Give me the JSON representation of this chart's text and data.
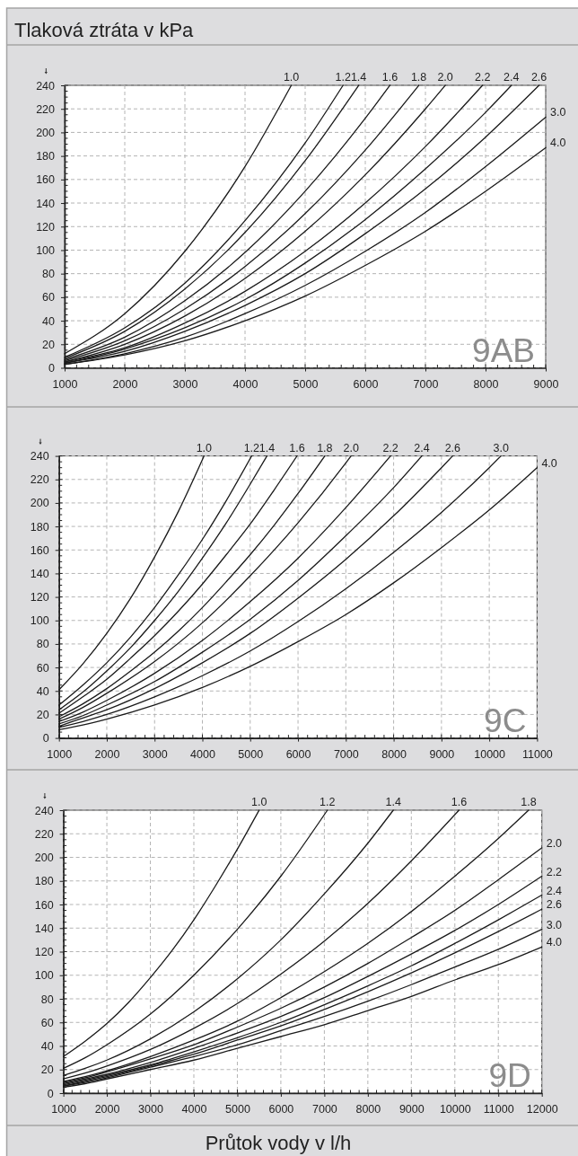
{
  "chart_data": [
    {
      "type": "line",
      "title": "9AB",
      "ylabel": "Tlaková ztráta v kPa",
      "grid": true,
      "xlim": [
        1000,
        9000
      ],
      "ylim": [
        0,
        240
      ],
      "xticks": [
        1000,
        {
          "value": 1200,
          "label": null
        },
        {
          "value": 1400,
          "label": null
        },
        {
          "value": 1600,
          "label": null
        },
        {
          "value": 1800,
          "label": null
        },
        2000,
        {
          "value": 2200,
          "label": null
        },
        {
          "value": 2400,
          "label": null
        },
        {
          "value": 2600,
          "label": null
        },
        {
          "value": 2800,
          "label": null
        },
        3000,
        {
          "value": 3200,
          "label": null
        },
        {
          "value": 3400,
          "label": null
        },
        {
          "value": 3600,
          "label": null
        },
        {
          "value": 3800,
          "label": null
        },
        4000,
        {
          "value": 4200,
          "label": null
        },
        {
          "value": 4400,
          "label": null
        },
        {
          "value": 4600,
          "label": null
        },
        {
          "value": 4800,
          "label": null
        },
        5000,
        {
          "value": 5200,
          "label": null
        },
        {
          "value": 5400,
          "label": null
        },
        {
          "value": 5600,
          "label": null
        },
        {
          "value": 5800,
          "label": null
        },
        6000,
        {
          "value": 6200,
          "label": null
        },
        {
          "value": 6400,
          "label": null
        },
        {
          "value": 6600,
          "label": null
        },
        {
          "value": 6800,
          "label": null
        },
        7000,
        {
          "value": 7200,
          "label": null
        },
        {
          "value": 7400,
          "label": null
        },
        {
          "value": 7600,
          "label": null
        },
        {
          "value": 7800,
          "label": null
        },
        8000,
        {
          "value": 8200,
          "label": null
        },
        {
          "value": 8400,
          "label": null
        },
        {
          "value": 8600,
          "label": null
        },
        {
          "value": 8800,
          "label": null
        },
        9000
      ],
      "yticks": [
        0,
        {
          "value": 5,
          "label": null
        },
        {
          "value": 10,
          "label": null
        },
        {
          "value": 15,
          "label": null
        },
        20,
        {
          "value": 25,
          "label": null
        },
        {
          "value": 30,
          "label": null
        },
        {
          "value": 35,
          "label": null
        },
        40,
        {
          "value": 45,
          "label": null
        },
        {
          "value": 50,
          "label": null
        },
        {
          "value": 55,
          "label": null
        },
        60,
        {
          "value": 65,
          "label": null
        },
        {
          "value": 70,
          "label": null
        },
        {
          "value": 75,
          "label": null
        },
        80,
        {
          "value": 85,
          "label": null
        },
        {
          "value": 90,
          "label": null
        },
        {
          "value": 95,
          "label": null
        },
        100,
        {
          "value": 105,
          "label": null
        },
        {
          "value": 110,
          "label": null
        },
        {
          "value": 115,
          "label": null
        },
        120,
        {
          "value": 125,
          "label": null
        },
        {
          "value": 130,
          "label": null
        },
        {
          "value": 135,
          "label": null
        },
        140,
        {
          "value": 145,
          "label": null
        },
        {
          "value": 150,
          "label": null
        },
        {
          "value": 155,
          "label": null
        },
        160,
        {
          "value": 165,
          "label": null
        },
        {
          "value": 170,
          "label": null
        },
        {
          "value": 175,
          "label": null
        },
        180,
        {
          "value": 185,
          "label": null
        },
        {
          "value": 190,
          "label": null
        },
        {
          "value": 195,
          "label": null
        },
        200,
        {
          "value": 205,
          "label": null
        },
        {
          "value": 210,
          "label": null
        },
        {
          "value": 215,
          "label": null
        },
        220,
        {
          "value": 225,
          "label": null
        },
        {
          "value": 230,
          "label": null
        },
        {
          "value": 235,
          "label": null
        },
        240
      ],
      "series": [
        {
          "name": "1.0",
          "color": "#1a1a1a",
          "x": [
            1000,
            2000,
            3000,
            4000,
            4770
          ],
          "values": [
            12,
            46,
            99,
            171,
            240
          ]
        },
        {
          "name": "1.2",
          "color": "#1a1a1a",
          "x": [
            1000,
            2000,
            3000,
            4000,
            5000,
            5630
          ],
          "values": [
            9,
            34,
            72,
            125,
            191,
            240
          ]
        },
        {
          "name": "1.4",
          "color": "#1a1a1a",
          "x": [
            1000,
            2000,
            3000,
            4000,
            5000,
            5890
          ],
          "values": [
            8,
            31,
            67,
            115,
            176,
            240
          ]
        },
        {
          "name": "1.6",
          "color": "#1a1a1a",
          "x": [
            1000,
            2000,
            3000,
            4000,
            5000,
            6000,
            6410
          ],
          "values": [
            7,
            26,
            57,
            98,
            150,
            212,
            240
          ]
        },
        {
          "name": "1.8",
          "color": "#1a1a1a",
          "x": [
            1000,
            2000,
            3000,
            4000,
            5000,
            6000,
            6890
          ],
          "values": [
            6,
            23,
            50,
            86,
            131,
            185,
            240
          ]
        },
        {
          "name": "2.0",
          "color": "#1a1a1a",
          "x": [
            1000,
            2000,
            3000,
            4000,
            5000,
            6000,
            7000,
            7330
          ],
          "values": [
            5,
            20,
            44,
            76,
            116,
            164,
            220,
            240
          ]
        },
        {
          "name": "2.2",
          "color": "#1a1a1a",
          "x": [
            1000,
            2000,
            3000,
            4000,
            5000,
            6000,
            7000,
            7950
          ],
          "values": [
            5,
            17,
            38,
            65,
            99,
            140,
            188,
            240
          ]
        },
        {
          "name": "2.4",
          "color": "#1a1a1a",
          "x": [
            1000,
            2000,
            3000,
            4000,
            5000,
            6000,
            7000,
            8000,
            8430
          ],
          "values": [
            4,
            16,
            34,
            58,
            89,
            126,
            169,
            217,
            240
          ]
        },
        {
          "name": "2.6",
          "color": "#1a1a1a",
          "x": [
            1000,
            2000,
            3000,
            4000,
            5000,
            6000,
            7000,
            8000,
            8890
          ],
          "values": [
            4,
            14,
            31,
            53,
            80,
            114,
            152,
            196,
            240
          ]
        },
        {
          "name": "3.0",
          "color": "#1a1a1a",
          "x": [
            1000,
            2000,
            3000,
            4000,
            5000,
            6000,
            7000,
            8000,
            9000
          ],
          "values": [
            3,
            12,
            26,
            46,
            70,
            99,
            132,
            171,
            213
          ]
        },
        {
          "name": "4.0",
          "color": "#1a1a1a",
          "x": [
            1000,
            2000,
            3000,
            4000,
            5000,
            6000,
            7000,
            8000,
            9000
          ],
          "values": [
            3,
            11,
            23,
            40,
            61,
            87,
            116,
            150,
            187
          ]
        }
      ]
    },
    {
      "type": "line",
      "title": "9C",
      "grid": true,
      "xlim": [
        1000,
        11000
      ],
      "ylim": [
        0,
        240
      ],
      "xticks": [
        1000,
        {
          "value": 1200,
          "label": null
        },
        {
          "value": 1400,
          "label": null
        },
        {
          "value": 1600,
          "label": null
        },
        {
          "value": 1800,
          "label": null
        },
        2000,
        {
          "value": 2200,
          "label": null
        },
        {
          "value": 2400,
          "label": null
        },
        {
          "value": 2600,
          "label": null
        },
        {
          "value": 2800,
          "label": null
        },
        3000,
        {
          "value": 3200,
          "label": null
        },
        {
          "value": 3400,
          "label": null
        },
        {
          "value": 3600,
          "label": null
        },
        {
          "value": 3800,
          "label": null
        },
        4000,
        {
          "value": 4200,
          "label": null
        },
        {
          "value": 4400,
          "label": null
        },
        {
          "value": 4600,
          "label": null
        },
        {
          "value": 4800,
          "label": null
        },
        5000,
        {
          "value": 5200,
          "label": null
        },
        {
          "value": 5400,
          "label": null
        },
        {
          "value": 5600,
          "label": null
        },
        {
          "value": 5800,
          "label": null
        },
        6000,
        {
          "value": 6200,
          "label": null
        },
        {
          "value": 6400,
          "label": null
        },
        {
          "value": 6600,
          "label": null
        },
        {
          "value": 6800,
          "label": null
        },
        7000,
        {
          "value": 7200,
          "label": null
        },
        {
          "value": 7400,
          "label": null
        },
        {
          "value": 7600,
          "label": null
        },
        {
          "value": 7800,
          "label": null
        },
        8000,
        {
          "value": 8200,
          "label": null
        },
        {
          "value": 8400,
          "label": null
        },
        {
          "value": 8600,
          "label": null
        },
        {
          "value": 8800,
          "label": null
        },
        9000,
        {
          "value": 9200,
          "label": null
        },
        {
          "value": 9400,
          "label": null
        },
        {
          "value": 9600,
          "label": null
        },
        {
          "value": 9800,
          "label": null
        },
        10000,
        {
          "value": 10200,
          "label": null
        },
        {
          "value": 10400,
          "label": null
        },
        {
          "value": 10600,
          "label": null
        },
        {
          "value": 10800,
          "label": null
        },
        11000
      ],
      "yticks": [
        0,
        {
          "value": 5,
          "label": null
        },
        {
          "value": 10,
          "label": null
        },
        {
          "value": 15,
          "label": null
        },
        20,
        {
          "value": 25,
          "label": null
        },
        {
          "value": 30,
          "label": null
        },
        {
          "value": 35,
          "label": null
        },
        40,
        {
          "value": 45,
          "label": null
        },
        {
          "value": 50,
          "label": null
        },
        {
          "value": 55,
          "label": null
        },
        60,
        {
          "value": 65,
          "label": null
        },
        {
          "value": 70,
          "label": null
        },
        {
          "value": 75,
          "label": null
        },
        80,
        {
          "value": 85,
          "label": null
        },
        {
          "value": 90,
          "label": null
        },
        {
          "value": 95,
          "label": null
        },
        100,
        {
          "value": 105,
          "label": null
        },
        {
          "value": 110,
          "label": null
        },
        {
          "value": 115,
          "label": null
        },
        120,
        {
          "value": 125,
          "label": null
        },
        {
          "value": 130,
          "label": null
        },
        {
          "value": 135,
          "label": null
        },
        140,
        {
          "value": 145,
          "label": null
        },
        {
          "value": 150,
          "label": null
        },
        {
          "value": 155,
          "label": null
        },
        160,
        {
          "value": 165,
          "label": null
        },
        {
          "value": 170,
          "label": null
        },
        {
          "value": 175,
          "label": null
        },
        180,
        {
          "value": 185,
          "label": null
        },
        {
          "value": 190,
          "label": null
        },
        {
          "value": 195,
          "label": null
        },
        200,
        {
          "value": 205,
          "label": null
        },
        {
          "value": 210,
          "label": null
        },
        {
          "value": 215,
          "label": null
        },
        220,
        {
          "value": 225,
          "label": null
        },
        {
          "value": 230,
          "label": null
        },
        {
          "value": 235,
          "label": null
        },
        240
      ],
      "series": [
        {
          "name": "1.0",
          "color": "#1a1a1a",
          "x": [
            1000,
            1500,
            2000,
            2500,
            3000,
            3500,
            4035
          ],
          "values": [
            41,
            63,
            89,
            119,
            154,
            193,
            240
          ]
        },
        {
          "name": "1.2",
          "color": "#1a1a1a",
          "x": [
            1000,
            1500,
            2000,
            2500,
            3000,
            3500,
            4000,
            4500,
            5030
          ],
          "values": [
            28,
            45,
            64,
            86,
            111,
            139,
            169,
            202,
            240
          ]
        },
        {
          "name": "1.4",
          "color": "#1a1a1a",
          "x": [
            1000,
            1500,
            2000,
            2500,
            3000,
            3500,
            4000,
            4500,
            5000,
            5350
          ],
          "values": [
            24,
            39,
            57,
            77,
            100,
            125,
            153,
            183,
            216,
            240
          ]
        },
        {
          "name": "1.6",
          "color": "#1a1a1a",
          "x": [
            1000,
            1500,
            2000,
            2500,
            3000,
            3500,
            4000,
            4500,
            5000,
            5500,
            5980
          ],
          "values": [
            21,
            35,
            50,
            68,
            87,
            108,
            131,
            156,
            182,
            211,
            240
          ]
        },
        {
          "name": "1.8",
          "color": "#1a1a1a",
          "x": [
            1000,
            1500,
            2000,
            2500,
            3000,
            3500,
            4000,
            4500,
            5000,
            5500,
            6000,
            6560
          ],
          "values": [
            18,
            29,
            42,
            57,
            73,
            91,
            111,
            133,
            156,
            181,
            208,
            240
          ]
        },
        {
          "name": "2.0",
          "color": "#1a1a1a",
          "x": [
            1000,
            1500,
            2000,
            3000,
            4000,
            5000,
            6000,
            7000,
            7110
          ],
          "values": [
            16,
            26,
            38,
            65,
            98,
            138,
            183,
            234,
            240
          ]
        },
        {
          "name": "2.2",
          "color": "#1a1a1a",
          "x": [
            1000,
            1500,
            2000,
            3000,
            4000,
            5000,
            6000,
            7000,
            7935
          ],
          "values": [
            14,
            22,
            32,
            55,
            83,
            116,
            153,
            196,
            240
          ]
        },
        {
          "name": "2.4",
          "color": "#1a1a1a",
          "x": [
            1000,
            1500,
            2000,
            3000,
            4000,
            5000,
            6000,
            7000,
            8000,
            8590
          ],
          "values": [
            12,
            19,
            28,
            48,
            73,
            101,
            134,
            172,
            213,
            240
          ]
        },
        {
          "name": "2.6",
          "color": "#1a1a1a",
          "x": [
            1000,
            1500,
            2000,
            3000,
            4000,
            5000,
            6000,
            7000,
            8000,
            9000,
            9235
          ],
          "values": [
            10,
            17,
            24,
            42,
            64,
            89,
            119,
            152,
            189,
            230,
            240
          ]
        },
        {
          "name": "3.0",
          "color": "#1a1a1a",
          "x": [
            1000,
            1500,
            2000,
            3000,
            4000,
            5000,
            6000,
            7000,
            8000,
            9000,
            10000,
            10245
          ],
          "values": [
            9,
            14,
            20,
            35,
            53,
            74,
            99,
            127,
            158,
            192,
            230,
            240
          ]
        },
        {
          "name": "4.0",
          "color": "#1a1a1a",
          "x": [
            1000,
            1500,
            2000,
            3000,
            4000,
            5000,
            6000,
            7000,
            8000,
            9000,
            10000,
            11000
          ],
          "values": [
            7,
            11,
            16,
            28,
            43,
            61,
            82,
            105,
            132,
            162,
            194,
            230
          ]
        }
      ]
    },
    {
      "type": "line",
      "title": "9D",
      "xlabel": "Průtok vody v l/h",
      "grid": true,
      "xlim": [
        1000,
        12000
      ],
      "ylim": [
        0,
        240
      ],
      "xticks": [
        1000,
        {
          "value": 1200,
          "label": null
        },
        {
          "value": 1400,
          "label": null
        },
        {
          "value": 1600,
          "label": null
        },
        {
          "value": 1800,
          "label": null
        },
        2000,
        {
          "value": 2200,
          "label": null
        },
        {
          "value": 2400,
          "label": null
        },
        {
          "value": 2600,
          "label": null
        },
        {
          "value": 2800,
          "label": null
        },
        3000,
        {
          "value": 3200,
          "label": null
        },
        {
          "value": 3400,
          "label": null
        },
        {
          "value": 3600,
          "label": null
        },
        {
          "value": 3800,
          "label": null
        },
        4000,
        {
          "value": 4200,
          "label": null
        },
        {
          "value": 4400,
          "label": null
        },
        {
          "value": 4600,
          "label": null
        },
        {
          "value": 4800,
          "label": null
        },
        5000,
        {
          "value": 5200,
          "label": null
        },
        {
          "value": 5400,
          "label": null
        },
        {
          "value": 5600,
          "label": null
        },
        {
          "value": 5800,
          "label": null
        },
        6000,
        {
          "value": 6200,
          "label": null
        },
        {
          "value": 6400,
          "label": null
        },
        {
          "value": 6600,
          "label": null
        },
        {
          "value": 6800,
          "label": null
        },
        7000,
        {
          "value": 7200,
          "label": null
        },
        {
          "value": 7400,
          "label": null
        },
        {
          "value": 7600,
          "label": null
        },
        {
          "value": 7800,
          "label": null
        },
        8000,
        {
          "value": 8200,
          "label": null
        },
        {
          "value": 8400,
          "label": null
        },
        {
          "value": 8600,
          "label": null
        },
        {
          "value": 8800,
          "label": null
        },
        9000,
        {
          "value": 9200,
          "label": null
        },
        {
          "value": 9400,
          "label": null
        },
        {
          "value": 9600,
          "label": null
        },
        {
          "value": 9800,
          "label": null
        },
        10000,
        {
          "value": 10200,
          "label": null
        },
        {
          "value": 10400,
          "label": null
        },
        {
          "value": 10600,
          "label": null
        },
        {
          "value": 10800,
          "label": null
        },
        11000,
        {
          "value": 11200,
          "label": null
        },
        {
          "value": 11400,
          "label": null
        },
        {
          "value": 11600,
          "label": null
        },
        {
          "value": 11800,
          "label": null
        },
        12000
      ],
      "yticks": [
        0,
        {
          "value": 5,
          "label": null
        },
        {
          "value": 10,
          "label": null
        },
        {
          "value": 15,
          "label": null
        },
        20,
        {
          "value": 25,
          "label": null
        },
        {
          "value": 30,
          "label": null
        },
        {
          "value": 35,
          "label": null
        },
        40,
        {
          "value": 45,
          "label": null
        },
        {
          "value": 50,
          "label": null
        },
        {
          "value": 55,
          "label": null
        },
        60,
        {
          "value": 65,
          "label": null
        },
        {
          "value": 70,
          "label": null
        },
        {
          "value": 75,
          "label": null
        },
        80,
        {
          "value": 85,
          "label": null
        },
        {
          "value": 90,
          "label": null
        },
        {
          "value": 95,
          "label": null
        },
        100,
        {
          "value": 105,
          "label": null
        },
        {
          "value": 110,
          "label": null
        },
        {
          "value": 115,
          "label": null
        },
        120,
        {
          "value": 125,
          "label": null
        },
        {
          "value": 130,
          "label": null
        },
        {
          "value": 135,
          "label": null
        },
        140,
        {
          "value": 145,
          "label": null
        },
        {
          "value": 150,
          "label": null
        },
        {
          "value": 155,
          "label": null
        },
        160,
        {
          "value": 165,
          "label": null
        },
        {
          "value": 170,
          "label": null
        },
        {
          "value": 175,
          "label": null
        },
        180,
        {
          "value": 185,
          "label": null
        },
        {
          "value": 190,
          "label": null
        },
        {
          "value": 195,
          "label": null
        },
        200,
        {
          "value": 205,
          "label": null
        },
        {
          "value": 210,
          "label": null
        },
        {
          "value": 215,
          "label": null
        },
        220,
        {
          "value": 225,
          "label": null
        },
        {
          "value": 230,
          "label": null
        },
        {
          "value": 235,
          "label": null
        },
        240
      ],
      "series": [
        {
          "name": "1.0",
          "color": "#1a1a1a",
          "x": [
            1000,
            1500,
            2000,
            2500,
            3000,
            3500,
            4000,
            4500,
            5000,
            5500
          ],
          "values": [
            31,
            44,
            59,
            77,
            98,
            121,
            147,
            176,
            207,
            240
          ]
        },
        {
          "name": "1.2",
          "color": "#1a1a1a",
          "x": [
            1000,
            1500,
            2000,
            3000,
            4000,
            5000,
            6000,
            7070
          ],
          "values": [
            21,
            30,
            41,
            67,
            100,
            139,
            184,
            240
          ]
        },
        {
          "name": "1.4",
          "color": "#1a1a1a",
          "x": [
            1000,
            1500,
            2000,
            3000,
            4000,
            5000,
            6000,
            7000,
            8000,
            8585
          ],
          "values": [
            15,
            21,
            28,
            46,
            69,
            97,
            130,
            169,
            212,
            240
          ]
        },
        {
          "name": "1.6",
          "color": "#1a1a1a",
          "x": [
            1000,
            1500,
            2000,
            3000,
            4000,
            5000,
            6000,
            7000,
            8000,
            9000,
            10096
          ],
          "values": [
            12,
            17,
            23,
            37,
            55,
            76,
            101,
            129,
            161,
            197,
            240
          ]
        },
        {
          "name": "1.8",
          "color": "#1a1a1a",
          "x": [
            1000,
            1500,
            2000,
            3000,
            4000,
            5000,
            6000,
            7000,
            8000,
            9000,
            10000,
            11000,
            11697
          ],
          "values": [
            10,
            14,
            19,
            31,
            45,
            61,
            81,
            103,
            127,
            154,
            184,
            216,
            240
          ]
        },
        {
          "name": "2.0",
          "color": "#1a1a1a",
          "x": [
            1000,
            1500,
            2000,
            3000,
            4000,
            5000,
            6000,
            7000,
            8000,
            9000,
            10000,
            11000,
            12000
          ],
          "values": [
            9,
            13,
            18,
            29,
            41,
            56,
            72,
            90,
            110,
            132,
            155,
            181,
            208
          ]
        },
        {
          "name": "2.2",
          "color": "#1a1a1a",
          "x": [
            1000,
            1500,
            2000,
            3000,
            4000,
            5000,
            6000,
            7000,
            8000,
            9000,
            10000,
            11000,
            12000
          ],
          "values": [
            8,
            12,
            16,
            26,
            38,
            51,
            65,
            81,
            99,
            118,
            138,
            160,
            184
          ]
        },
        {
          "name": "2.4",
          "color": "#1a1a1a",
          "x": [
            1000,
            1500,
            2000,
            3000,
            4000,
            5000,
            6000,
            7000,
            8000,
            9000,
            10000,
            11000,
            12000
          ],
          "values": [
            7,
            11,
            15,
            24,
            35,
            47,
            60,
            75,
            91,
            108,
            127,
            147,
            168
          ]
        },
        {
          "name": "2.6",
          "color": "#1a1a1a",
          "x": [
            1000,
            1500,
            2000,
            3000,
            4000,
            5000,
            6000,
            7000,
            8000,
            9000,
            10000,
            11000,
            12000
          ],
          "values": [
            6,
            10,
            14,
            23,
            33,
            45,
            57,
            71,
            86,
            102,
            119,
            137,
            156
          ]
        },
        {
          "name": "3.0",
          "color": "#1a1a1a",
          "x": [
            1000,
            1500,
            2000,
            3000,
            4000,
            5000,
            6000,
            7000,
            8000,
            9000,
            10000,
            11000,
            12000
          ],
          "values": [
            6,
            9,
            13,
            22,
            31,
            41,
            53,
            65,
            78,
            92,
            107,
            122,
            139
          ]
        },
        {
          "name": "4.0",
          "color": "#1a1a1a",
          "x": [
            1000,
            1500,
            2000,
            3000,
            4000,
            5000,
            6000,
            7000,
            8000,
            9000,
            10000,
            11000,
            12000
          ],
          "values": [
            5,
            8,
            12,
            20,
            28,
            38,
            48,
            58,
            70,
            82,
            96,
            109,
            124
          ]
        }
      ]
    }
  ]
}
